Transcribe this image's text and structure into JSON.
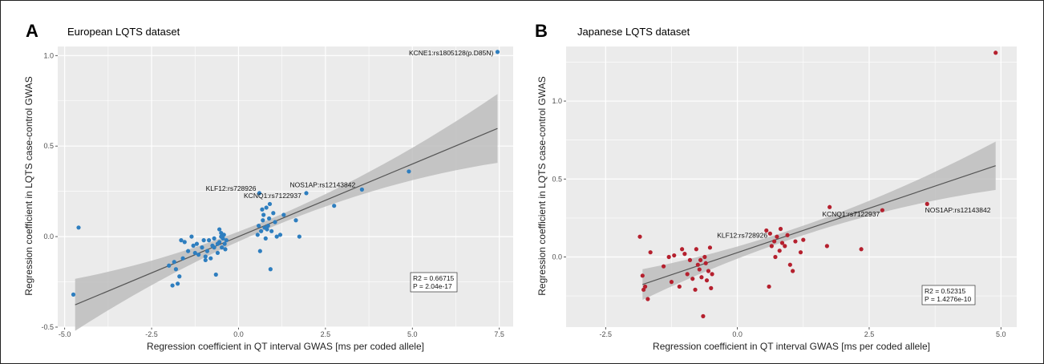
{
  "chart_data": [
    {
      "type": "scatter",
      "panel_letter": "A",
      "title": "European LQTS dataset",
      "xlabel": "Regression coefficient in QT interval GWAS [ms per coded allele]",
      "ylabel": "Regression coefficient in LQTS case-control GWAS",
      "xlim": [
        -5.2,
        7.9
      ],
      "ylim": [
        -0.5,
        1.05
      ],
      "xticks": [
        -5.0,
        -2.5,
        0.0,
        2.5,
        5.0,
        7.5
      ],
      "xtick_labels": [
        "-5.0",
        "-2.5",
        "0.0",
        "2.5",
        "5.0",
        "7.5"
      ],
      "yticks": [
        -0.5,
        0.0,
        0.5,
        1.0
      ],
      "ytick_labels": [
        "-0.5",
        "0.0",
        "0.5",
        "1.0"
      ],
      "grid": true,
      "point_color": "#2e7ebf",
      "fit": {
        "x0": -4.7,
        "x1": 7.45,
        "slope": 0.0802,
        "intercept": 0.0,
        "band_low": 0.024,
        "band_high": 0.19
      },
      "stats": [
        "R2 =  0.66715",
        "P = 2.04e-17"
      ],
      "annotations": [
        {
          "text": "KCNE1:rs1805128(p.D85N)",
          "x": 7.4,
          "y": 1.02
        },
        {
          "text": "KLF12:rs728926",
          "x": 0.6,
          "y": 0.24
        },
        {
          "text": "KCNQ1:rs7122937",
          "x": 1.9,
          "y": 0.2
        },
        {
          "text": "NOS1AP:rs12143842",
          "x": 3.5,
          "y": 0.25
        }
      ],
      "points": [
        [
          -4.75,
          -0.32
        ],
        [
          -4.6,
          0.05
        ],
        [
          -2.0,
          -0.16
        ],
        [
          -1.9,
          -0.27
        ],
        [
          -1.75,
          -0.26
        ],
        [
          -1.7,
          -0.22
        ],
        [
          -1.8,
          -0.18
        ],
        [
          -1.85,
          -0.14
        ],
        [
          -1.6,
          -0.12
        ],
        [
          -1.55,
          -0.03
        ],
        [
          -1.65,
          -0.02
        ],
        [
          -1.45,
          -0.08
        ],
        [
          -1.35,
          0.0
        ],
        [
          -1.3,
          -0.05
        ],
        [
          -1.2,
          -0.04
        ],
        [
          -1.15,
          -0.1
        ],
        [
          -1.05,
          -0.06
        ],
        [
          -1.0,
          -0.02
        ],
        [
          -0.95,
          -0.13
        ],
        [
          -0.9,
          -0.08
        ],
        [
          -0.85,
          -0.02
        ],
        [
          -0.8,
          -0.12
        ],
        [
          -0.75,
          -0.05
        ],
        [
          -0.7,
          -0.01
        ],
        [
          -0.65,
          -0.21
        ],
        [
          -0.6,
          -0.09
        ],
        [
          -0.55,
          -0.03
        ],
        [
          -0.5,
          0.02
        ],
        [
          -0.48,
          -0.06
        ],
        [
          -0.45,
          -0.01
        ],
        [
          -0.42,
          0.01
        ],
        [
          -0.4,
          -0.04
        ],
        [
          -0.38,
          -0.07
        ],
        [
          -0.35,
          -0.02
        ],
        [
          -0.55,
          0.04
        ],
        [
          -0.5,
          0.0
        ],
        [
          -0.7,
          -0.06
        ],
        [
          -0.95,
          -0.11
        ],
        [
          -1.25,
          -0.09
        ],
        [
          -0.6,
          -0.04
        ],
        [
          0.55,
          0.01
        ],
        [
          0.58,
          0.06
        ],
        [
          0.6,
          0.24
        ],
        [
          0.62,
          -0.08
        ],
        [
          0.65,
          0.03
        ],
        [
          0.7,
          0.09
        ],
        [
          0.72,
          0.12
        ],
        [
          0.75,
          0.05
        ],
        [
          0.78,
          -0.01
        ],
        [
          0.8,
          0.16
        ],
        [
          0.85,
          0.06
        ],
        [
          0.88,
          0.1
        ],
        [
          0.9,
          0.18
        ],
        [
          0.92,
          -0.18
        ],
        [
          0.95,
          0.03
        ],
        [
          1.0,
          0.13
        ],
        [
          1.05,
          0.08
        ],
        [
          1.1,
          0.0
        ],
        [
          1.2,
          0.01
        ],
        [
          1.3,
          0.12
        ],
        [
          0.82,
          0.04
        ],
        [
          0.68,
          0.15
        ],
        [
          1.65,
          0.09
        ],
        [
          1.75,
          0.0
        ],
        [
          1.95,
          0.24
        ],
        [
          2.75,
          0.17
        ],
        [
          3.55,
          0.26
        ],
        [
          4.9,
          0.36
        ],
        [
          7.45,
          1.02
        ]
      ]
    },
    {
      "type": "scatter",
      "panel_letter": "B",
      "title": "Japanese LQTS dataset",
      "xlabel": "Regression coefficient in QT interval GWAS [ms per coded allele]",
      "ylabel": "Regression coefficient in LQTS case-control GWAS",
      "xlim": [
        -3.25,
        5.3
      ],
      "ylim": [
        -0.45,
        1.35
      ],
      "xticks": [
        -2.5,
        0.0,
        2.5,
        5.0
      ],
      "xtick_labels": [
        "-2.5",
        "0.0",
        "2.5",
        "5.0"
      ],
      "yticks": [
        0.0,
        0.5,
        1.0
      ],
      "ytick_labels": [
        "0.0",
        "0.5",
        "1.0"
      ],
      "grid": true,
      "point_color": "#b5202e",
      "fit": {
        "x0": -1.8,
        "x1": 4.9,
        "slope": 0.1137,
        "intercept": 0.028,
        "band_low": 0.03,
        "band_high": 0.155
      },
      "stats": [
        "R2 =  0.52315",
        "P = 1.4276e-10"
      ],
      "annotations": [
        {
          "text": "KLF12:rs728926",
          "x": 0.6,
          "y": 0.15
        },
        {
          "text": "KCNQ1:rs7122937",
          "x": 1.7,
          "y": 0.26
        },
        {
          "text": "NOS1AP:rs12143842",
          "x": 3.5,
          "y": 0.3
        }
      ],
      "points": [
        [
          -1.85,
          0.13
        ],
        [
          -1.8,
          -0.12
        ],
        [
          -1.78,
          -0.21
        ],
        [
          -1.75,
          -0.19
        ],
        [
          -1.7,
          -0.27
        ],
        [
          -1.65,
          0.03
        ],
        [
          -1.4,
          -0.06
        ],
        [
          -1.3,
          0.0
        ],
        [
          -1.25,
          -0.16
        ],
        [
          -1.2,
          0.01
        ],
        [
          -1.1,
          -0.19
        ],
        [
          -1.05,
          0.05
        ],
        [
          -1.0,
          0.02
        ],
        [
          -0.95,
          -0.11
        ],
        [
          -0.9,
          -0.02
        ],
        [
          -0.85,
          -0.14
        ],
        [
          -0.8,
          -0.21
        ],
        [
          -0.78,
          0.05
        ],
        [
          -0.75,
          -0.05
        ],
        [
          -0.72,
          -0.08
        ],
        [
          -0.7,
          -0.02
        ],
        [
          -0.68,
          -0.13
        ],
        [
          -0.65,
          -0.38
        ],
        [
          -0.62,
          0.0
        ],
        [
          -0.6,
          -0.04
        ],
        [
          -0.58,
          -0.15
        ],
        [
          -0.55,
          -0.09
        ],
        [
          -0.52,
          0.06
        ],
        [
          -0.5,
          -0.2
        ],
        [
          -0.48,
          -0.11
        ],
        [
          0.55,
          0.17
        ],
        [
          0.6,
          -0.19
        ],
        [
          0.62,
          0.15
        ],
        [
          0.65,
          0.07
        ],
        [
          0.7,
          0.1
        ],
        [
          0.72,
          0.0
        ],
        [
          0.75,
          0.13
        ],
        [
          0.8,
          0.04
        ],
        [
          0.82,
          0.18
        ],
        [
          0.85,
          0.09
        ],
        [
          0.9,
          0.07
        ],
        [
          0.95,
          0.14
        ],
        [
          1.0,
          -0.05
        ],
        [
          1.05,
          -0.09
        ],
        [
          1.1,
          0.1
        ],
        [
          1.2,
          0.03
        ],
        [
          1.25,
          0.11
        ],
        [
          1.7,
          0.07
        ],
        [
          1.75,
          0.32
        ],
        [
          2.35,
          0.05
        ],
        [
          2.75,
          0.3
        ],
        [
          3.6,
          0.34
        ],
        [
          4.9,
          1.31
        ]
      ]
    }
  ]
}
